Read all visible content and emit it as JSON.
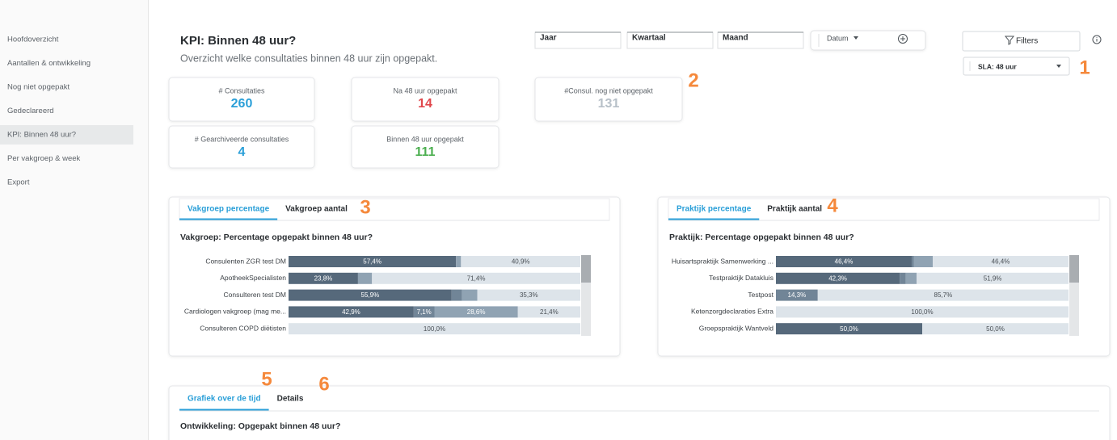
{
  "sidebar": {
    "items": [
      "Hoofdoverzicht",
      "Aantallen & ontwikkeling",
      "Nog niet opgepakt",
      "Gedeclareerd",
      "KPI: Binnen 48 uur?",
      "Per vakgroep & week",
      "Export"
    ],
    "active": 4
  },
  "header": {
    "title": "KPI: Binnen 48 uur?",
    "subtitle": "Overzicht welke consultaties binnen 48 uur zijn opgepakt."
  },
  "controls": {
    "periods": [
      "Jaar",
      "Kwartaal",
      "Maand"
    ],
    "date": "Datum",
    "filters": "Filters",
    "sla": "SLA: 48 uur"
  },
  "kpis": [
    {
      "label": "# Consultaties",
      "value": 260,
      "color": "#2a9fd8"
    },
    {
      "label": "Na 48 uur opgepakt",
      "value": 14,
      "color": "#e0474c"
    },
    {
      "label": "#Consul. nog niet opgepakt",
      "value": 131,
      "color": "#b7c0c8"
    },
    {
      "label": "# Gearchiveerde consultaties",
      "value": 4,
      "color": "#2a9fd8"
    },
    {
      "label": "Binnen 48 uur opgepakt",
      "value": 111,
      "color": "#4caf50"
    }
  ],
  "callouts": [
    1,
    2,
    3,
    4,
    5,
    6
  ],
  "panels": [
    {
      "tabs": [
        "Vakgroep percentage",
        "Vakgroep aantal"
      ],
      "active": 0,
      "title": "Vakgroep: Percentage opgepakt binnen 48 uur?",
      "xlim": [
        0,
        100
      ],
      "rows": [
        {
          "label": "Consulenten ZGR test DM",
          "segments": [
            {
              "value": 57.4,
              "label": "57,4%",
              "color": "#56697b"
            },
            {
              "value": 1.7,
              "color": "#90a3b3"
            },
            {
              "value": 40.9,
              "label": "40,9%",
              "color": "#dde4ea"
            }
          ]
        },
        {
          "label": "ApotheekSpecialisten",
          "segments": [
            {
              "value": 23.8,
              "label": "23,8%",
              "color": "#56697b"
            },
            {
              "value": 4.8,
              "color": "#90a3b3"
            },
            {
              "value": 71.4,
              "label": "71,4%",
              "color": "#dde4ea"
            }
          ]
        },
        {
          "label": "Consulteren test DM",
          "segments": [
            {
              "value": 55.9,
              "label": "55,9%",
              "color": "#56697b"
            },
            {
              "value": 3.5,
              "color": "#718597"
            },
            {
              "value": 5.3,
              "color": "#90a3b3"
            },
            {
              "value": 35.3,
              "label": "35,3%",
              "color": "#dde4ea"
            }
          ]
        },
        {
          "label": "Cardiologen vakgroep (mag me...",
          "segments": [
            {
              "value": 42.9,
              "label": "42,9%",
              "color": "#56697b"
            },
            {
              "value": 7.1,
              "label": "7,1%",
              "color": "#718597"
            },
            {
              "value": 28.6,
              "label": "28,6%",
              "color": "#90a3b3"
            },
            {
              "value": 21.4,
              "label": "21,4%",
              "color": "#dde4ea"
            }
          ]
        },
        {
          "label": "Consulteren COPD diëtisten",
          "segments": [
            {
              "value": 100,
              "label": "100,0%",
              "color": "#dde4ea"
            }
          ]
        }
      ]
    },
    {
      "tabs": [
        "Praktijk percentage",
        "Praktijk aantal"
      ],
      "active": 0,
      "title": "Praktijk: Percentage opgepakt binnen 48 uur?",
      "xlim": [
        0,
        100
      ],
      "rows": [
        {
          "label": "Huisartspraktijk Samenwerking ...",
          "segments": [
            {
              "value": 46.4,
              "label": "46,4%",
              "color": "#56697b"
            },
            {
              "value": 0.8,
              "color": "#718597"
            },
            {
              "value": 6.4,
              "color": "#90a3b3"
            },
            {
              "value": 46.4,
              "label": "46,4%",
              "color": "#dde4ea"
            }
          ]
        },
        {
          "label": "Testpraktijk Datakluis",
          "segments": [
            {
              "value": 42.3,
              "label": "42,3%",
              "color": "#56697b"
            },
            {
              "value": 2.1,
              "color": "#718597"
            },
            {
              "value": 3.7,
              "color": "#90a3b3"
            },
            {
              "value": 51.9,
              "label": "51,9%",
              "color": "#dde4ea"
            }
          ]
        },
        {
          "label": "Testpost",
          "segments": [
            {
              "value": 14.3,
              "label": "14,3%",
              "color": "#718597"
            },
            {
              "value": 85.7,
              "label": "85,7%",
              "color": "#dde4ea"
            }
          ]
        },
        {
          "label": "Ketenzorgdeclaraties Extra",
          "segments": [
            {
              "value": 100,
              "label": "100,0%",
              "color": "#dde4ea"
            }
          ]
        },
        {
          "label": "Groepspraktijk Wantveld",
          "segments": [
            {
              "value": 50,
              "label": "50,0%",
              "color": "#56697b"
            },
            {
              "value": 50,
              "label": "50,0%",
              "color": "#dde4ea"
            }
          ]
        }
      ]
    }
  ],
  "bottom": {
    "tabs": [
      "Grafiek over de tijd",
      "Details"
    ],
    "active": 0,
    "title": "Ontwikkeling: Opgepakt binnen 48 uur?"
  }
}
